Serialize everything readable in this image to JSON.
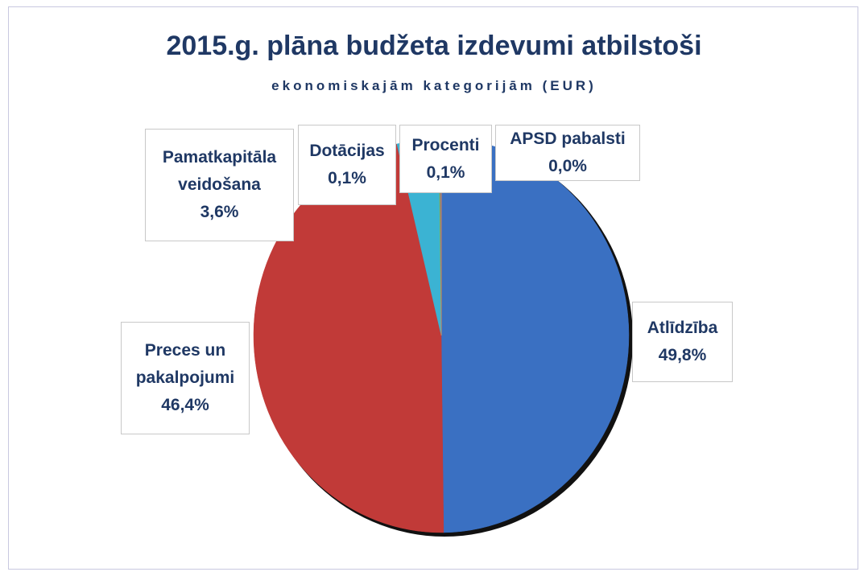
{
  "chart_data": {
    "type": "pie",
    "title": "2015.g. plāna budžeta izdevumi atbilstoši",
    "subtitle": "ekonomiskajām kategorijām (EUR)",
    "categories": [
      "Atlīdzība",
      "Preces un pakalpojumi",
      "Pamatkapitāla veidošana",
      "Dotācijas",
      "Procenti",
      "APSD pabalsti"
    ],
    "values": [
      49.8,
      46.4,
      3.6,
      0.1,
      0.1,
      0.0
    ],
    "value_labels": [
      "49,8%",
      "46,4%",
      "3,6%",
      "0,1%",
      "0,1%",
      "0,0%"
    ],
    "colors": [
      "#3a70c2",
      "#c13a38",
      "#3bb3d3",
      "#8fb83c",
      "#7b5ea9",
      "#f39a3a"
    ]
  }
}
